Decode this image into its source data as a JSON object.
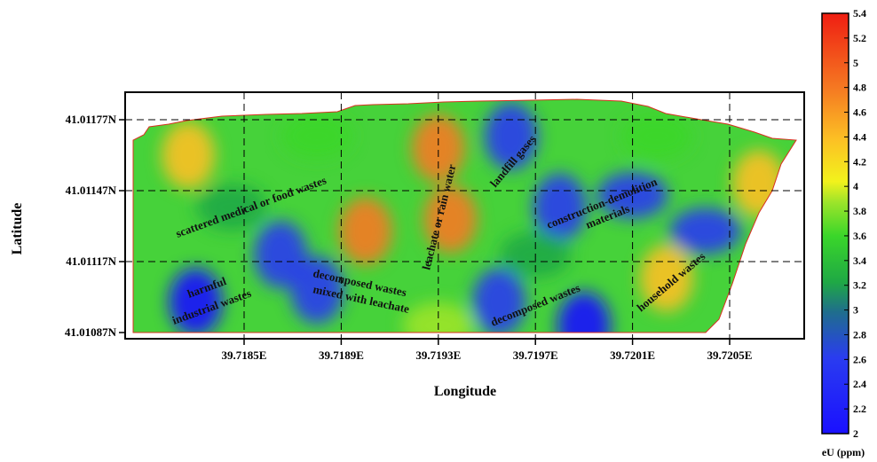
{
  "chart_data": {
    "type": "heatmap",
    "title": "",
    "xlabel": "Longitude",
    "ylabel": "Latitude",
    "x_ticks": [
      "39.7185E",
      "39.7189E",
      "39.7193E",
      "39.7197E",
      "39.7201E",
      "39.7205E"
    ],
    "y_ticks": [
      "41.01177N",
      "41.01147N",
      "41.01117N",
      "41.01087N"
    ],
    "grid": "dashed",
    "colorbar": {
      "label": "eU (ppm)",
      "range": [
        2,
        5.4
      ],
      "ticks": [
        "5.4",
        "5.2",
        "5",
        "4.8",
        "4.6",
        "4.4",
        "4.2",
        "4",
        "3.8",
        "3.6",
        "3.4",
        "3.2",
        "3",
        "2.8",
        "2.6",
        "2.4",
        "2.2",
        "2"
      ]
    },
    "annotations": [
      "scattered medical or food wastes",
      "leachate or rain water",
      "landfill gases",
      "construction-demolition",
      "materials",
      "harmful",
      "industrial wastes",
      "decomposed wastes",
      "mixed with leachate",
      "decomposed wastes",
      "household wastes"
    ],
    "hotspots": [
      {
        "x": 39.71935,
        "y": 41.01135,
        "value": 5.2
      },
      {
        "x": 39.7193,
        "y": 41.01165,
        "value": 4.9
      },
      {
        "x": 39.719,
        "y": 41.0113,
        "value": 4.8
      },
      {
        "x": 39.71827,
        "y": 41.01162,
        "value": 4.5
      },
      {
        "x": 39.72024,
        "y": 41.0111,
        "value": 4.6
      },
      {
        "x": 39.72062,
        "y": 41.0115,
        "value": 4.6
      },
      {
        "x": 39.7193,
        "y": 41.0109,
        "value": 3.9
      },
      {
        "x": 39.7188,
        "y": 41.0117,
        "value": 3.6
      },
      {
        "x": 39.7202,
        "y": 41.0117,
        "value": 3.7
      },
      {
        "x": 39.71865,
        "y": 41.0112,
        "value": 2.8
      },
      {
        "x": 39.7183,
        "y": 41.011,
        "value": 2.5
      },
      {
        "x": 39.7196,
        "y": 41.0117,
        "value": 2.6
      },
      {
        "x": 39.7198,
        "y": 41.0114,
        "value": 2.8
      },
      {
        "x": 39.7201,
        "y": 41.01145,
        "value": 2.9
      },
      {
        "x": 39.71955,
        "y": 41.011,
        "value": 2.7
      },
      {
        "x": 39.7199,
        "y": 41.0109,
        "value": 2.4
      },
      {
        "x": 39.7204,
        "y": 41.0113,
        "value": 2.9
      },
      {
        "x": 39.7188,
        "y": 41.01105,
        "value": 2.6
      },
      {
        "x": 39.71845,
        "y": 41.0114,
        "value": 3.2
      },
      {
        "x": 39.7197,
        "y": 41.0112,
        "value": 3.4
      }
    ]
  }
}
